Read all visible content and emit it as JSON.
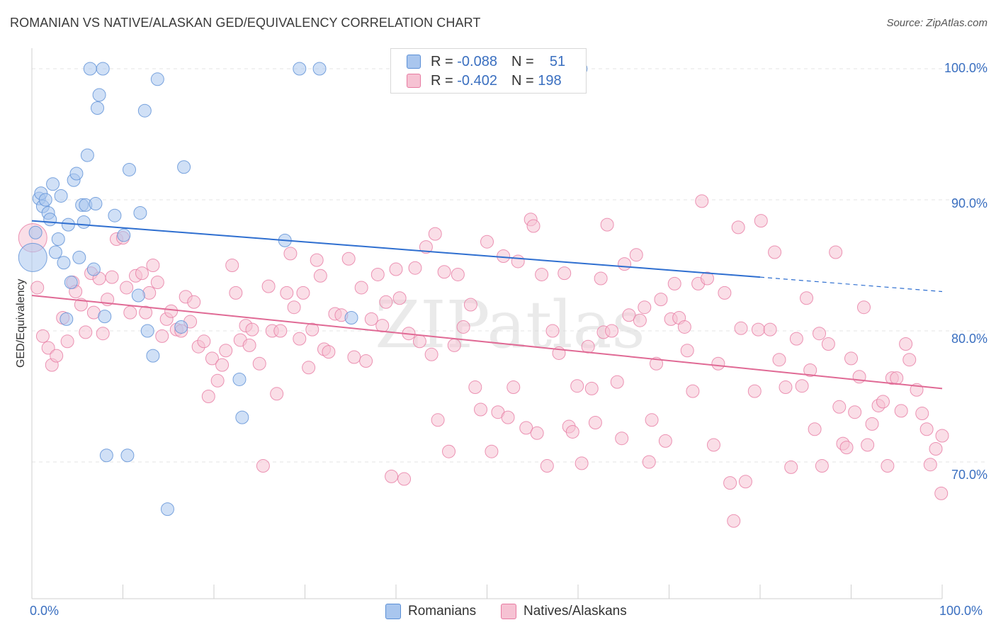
{
  "title": "ROMANIAN VS NATIVE/ALASKAN GED/EQUIVALENCY CORRELATION CHART",
  "source": "Source: ZipAtlas.com",
  "watermark": "ZIPatlas",
  "legend_stats": [
    {
      "r_label": "R =",
      "r_value": "-0.088",
      "n_label": "N =",
      "n_value": "51"
    },
    {
      "r_label": "R =",
      "r_value": "-0.402",
      "n_label": "N =",
      "n_value": "198"
    }
  ],
  "chart_data": {
    "type": "scatter",
    "title": "ROMANIAN VS NATIVE/ALASKAN GED/EQUIVALENCY CORRELATION CHART",
    "xlabel": "",
    "ylabel": "GED/Equivalency",
    "xlim": [
      0,
      100
    ],
    "ylim": [
      59,
      101
    ],
    "x_tick_labels": [
      "0.0%",
      "100.0%"
    ],
    "y_ticks": [
      70,
      80,
      90,
      100
    ],
    "y_tick_labels": [
      "70.0%",
      "80.0%",
      "90.0%",
      "100.0%"
    ],
    "grid": true,
    "legend_position": "bottom-center",
    "series": [
      {
        "name": "Romanians",
        "color": "#5b8fd6",
        "fill": "#a9c6ee",
        "r": -0.088,
        "n": 51,
        "trend": {
          "x0": 0,
          "y0": 88.4,
          "x1": 80,
          "y1": 84.1,
          "dash_x1": 100,
          "dash_y1": 83.0
        },
        "points": [
          [
            0.1,
            85.6
          ],
          [
            0.4,
            87.5
          ],
          [
            0.8,
            90.1
          ],
          [
            1.0,
            90.5
          ],
          [
            1.2,
            89.5
          ],
          [
            1.5,
            90.0
          ],
          [
            1.8,
            89.0
          ],
          [
            2.0,
            88.5
          ],
          [
            2.3,
            91.2
          ],
          [
            2.6,
            86.0
          ],
          [
            2.9,
            87.0
          ],
          [
            3.2,
            90.3
          ],
          [
            3.5,
            85.2
          ],
          [
            3.8,
            80.9
          ],
          [
            4.0,
            88.1
          ],
          [
            4.3,
            83.7
          ],
          [
            4.6,
            91.5
          ],
          [
            4.9,
            92.0
          ],
          [
            5.2,
            85.6
          ],
          [
            5.5,
            89.6
          ],
          [
            5.7,
            88.3
          ],
          [
            5.9,
            89.6
          ],
          [
            6.1,
            93.4
          ],
          [
            6.4,
            100.0
          ],
          [
            6.8,
            84.7
          ],
          [
            7.0,
            89.7
          ],
          [
            7.2,
            97.0
          ],
          [
            7.4,
            98.0
          ],
          [
            7.8,
            100.0
          ],
          [
            8.0,
            81.1
          ],
          [
            8.2,
            70.5
          ],
          [
            9.1,
            88.8
          ],
          [
            10.1,
            87.3
          ],
          [
            10.5,
            70.5
          ],
          [
            10.7,
            92.3
          ],
          [
            11.7,
            82.7
          ],
          [
            11.9,
            89.0
          ],
          [
            12.4,
            96.8
          ],
          [
            12.7,
            80.0
          ],
          [
            13.3,
            78.1
          ],
          [
            13.8,
            99.2
          ],
          [
            14.9,
            66.4
          ],
          [
            16.4,
            80.3
          ],
          [
            16.7,
            92.5
          ],
          [
            22.8,
            76.3
          ],
          [
            23.1,
            73.4
          ],
          [
            27.8,
            86.9
          ],
          [
            29.4,
            100.0
          ],
          [
            31.6,
            100.0
          ],
          [
            35.1,
            81.0
          ],
          [
            60.3,
            100.0
          ]
        ]
      },
      {
        "name": "Natives/Alaskans",
        "color": "#e77ba2",
        "fill": "#f6c2d3",
        "r": -0.402,
        "n": 198,
        "trend": {
          "x0": 0,
          "y0": 82.7,
          "x1": 100,
          "y1": 75.6
        },
        "points": [
          [
            0.1,
            87.1
          ],
          [
            0.6,
            83.3
          ],
          [
            1.2,
            79.6
          ],
          [
            1.8,
            78.7
          ],
          [
            2.2,
            77.4
          ],
          [
            2.7,
            78.1
          ],
          [
            3.4,
            81.0
          ],
          [
            3.9,
            79.2
          ],
          [
            4.5,
            83.7
          ],
          [
            4.8,
            83.0
          ],
          [
            5.4,
            82.0
          ],
          [
            5.9,
            79.9
          ],
          [
            6.5,
            84.4
          ],
          [
            6.8,
            81.4
          ],
          [
            7.4,
            84.0
          ],
          [
            7.8,
            79.8
          ],
          [
            8.3,
            82.4
          ],
          [
            8.8,
            84.1
          ],
          [
            9.3,
            87.0
          ],
          [
            10.0,
            87.1
          ],
          [
            10.4,
            83.3
          ],
          [
            10.8,
            81.4
          ],
          [
            11.4,
            84.2
          ],
          [
            12.1,
            84.4
          ],
          [
            12.5,
            81.4
          ],
          [
            12.9,
            82.9
          ],
          [
            13.3,
            85.0
          ],
          [
            13.8,
            83.7
          ],
          [
            14.3,
            79.6
          ],
          [
            14.8,
            80.9
          ],
          [
            15.3,
            81.5
          ],
          [
            15.9,
            80.1
          ],
          [
            16.4,
            80.0
          ],
          [
            16.9,
            82.6
          ],
          [
            17.4,
            80.7
          ],
          [
            17.8,
            82.2
          ],
          [
            18.3,
            78.8
          ],
          [
            18.9,
            79.2
          ],
          [
            19.4,
            75.0
          ],
          [
            19.8,
            77.9
          ],
          [
            20.4,
            76.2
          ],
          [
            20.9,
            77.4
          ],
          [
            21.3,
            78.5
          ],
          [
            22.0,
            85.0
          ],
          [
            22.4,
            82.9
          ],
          [
            22.9,
            79.3
          ],
          [
            23.5,
            80.4
          ],
          [
            23.9,
            78.9
          ],
          [
            24.2,
            80.1
          ],
          [
            25.0,
            77.5
          ],
          [
            25.4,
            69.7
          ],
          [
            26.0,
            83.4
          ],
          [
            26.4,
            80.0
          ],
          [
            26.9,
            75.2
          ],
          [
            27.3,
            80.0
          ],
          [
            28.0,
            82.9
          ],
          [
            28.4,
            85.9
          ],
          [
            28.8,
            81.8
          ],
          [
            29.4,
            79.4
          ],
          [
            29.8,
            82.9
          ],
          [
            30.4,
            77.2
          ],
          [
            30.8,
            80.1
          ],
          [
            31.3,
            85.4
          ],
          [
            31.7,
            84.2
          ],
          [
            32.1,
            78.6
          ],
          [
            32.6,
            78.4
          ],
          [
            33.3,
            81.3
          ],
          [
            34.0,
            81.2
          ],
          [
            34.8,
            85.5
          ],
          [
            35.4,
            78.0
          ],
          [
            36.2,
            83.3
          ],
          [
            36.7,
            77.7
          ],
          [
            37.3,
            80.9
          ],
          [
            38.0,
            84.3
          ],
          [
            38.5,
            80.4
          ],
          [
            38.9,
            82.2
          ],
          [
            39.5,
            68.9
          ],
          [
            40.0,
            84.7
          ],
          [
            40.4,
            82.5
          ],
          [
            40.9,
            68.7
          ],
          [
            41.4,
            79.8
          ],
          [
            42.1,
            84.8
          ],
          [
            42.6,
            79.2
          ],
          [
            43.3,
            86.4
          ],
          [
            43.9,
            78.2
          ],
          [
            44.3,
            87.4
          ],
          [
            44.6,
            73.2
          ],
          [
            45.3,
            84.5
          ],
          [
            45.8,
            70.8
          ],
          [
            46.4,
            78.9
          ],
          [
            46.8,
            84.3
          ],
          [
            47.4,
            80.3
          ],
          [
            48.2,
            82.0
          ],
          [
            48.7,
            75.7
          ],
          [
            49.3,
            74.0
          ],
          [
            50.0,
            86.8
          ],
          [
            50.5,
            70.8
          ],
          [
            51.2,
            73.8
          ],
          [
            51.8,
            85.7
          ],
          [
            52.3,
            73.4
          ],
          [
            52.9,
            75.7
          ],
          [
            53.4,
            85.3
          ],
          [
            54.3,
            72.6
          ],
          [
            54.8,
            88.5
          ],
          [
            55.1,
            88.0
          ],
          [
            55.5,
            72.2
          ],
          [
            56.0,
            84.3
          ],
          [
            56.6,
            69.7
          ],
          [
            57.2,
            80.0
          ],
          [
            57.9,
            78.3
          ],
          [
            58.5,
            84.4
          ],
          [
            59.0,
            72.7
          ],
          [
            59.4,
            72.3
          ],
          [
            59.9,
            75.8
          ],
          [
            60.4,
            69.9
          ],
          [
            61.1,
            78.8
          ],
          [
            61.5,
            75.6
          ],
          [
            61.9,
            73.0
          ],
          [
            62.5,
            84.0
          ],
          [
            62.8,
            79.9
          ],
          [
            63.2,
            88.1
          ],
          [
            63.7,
            80.0
          ],
          [
            64.3,
            76.1
          ],
          [
            64.8,
            71.8
          ],
          [
            65.1,
            85.1
          ],
          [
            65.6,
            81.2
          ],
          [
            66.4,
            85.8
          ],
          [
            66.8,
            80.8
          ],
          [
            67.3,
            81.8
          ],
          [
            67.8,
            70.0
          ],
          [
            68.1,
            73.2
          ],
          [
            68.6,
            77.5
          ],
          [
            69.1,
            82.4
          ],
          [
            69.6,
            71.6
          ],
          [
            70.2,
            80.9
          ],
          [
            70.6,
            83.6
          ],
          [
            71.1,
            81.0
          ],
          [
            71.7,
            80.3
          ],
          [
            72.0,
            78.5
          ],
          [
            72.6,
            75.4
          ],
          [
            73.2,
            83.6
          ],
          [
            73.6,
            89.9
          ],
          [
            74.2,
            84.0
          ],
          [
            74.9,
            71.3
          ],
          [
            75.4,
            77.5
          ],
          [
            76.1,
            82.9
          ],
          [
            76.7,
            68.4
          ],
          [
            77.1,
            65.5
          ],
          [
            77.6,
            87.9
          ],
          [
            77.9,
            80.2
          ],
          [
            78.4,
            68.5
          ],
          [
            79.4,
            75.4
          ],
          [
            79.8,
            80.1
          ],
          [
            80.1,
            88.4
          ],
          [
            81.1,
            80.1
          ],
          [
            81.6,
            86.0
          ],
          [
            82.1,
            77.8
          ],
          [
            82.8,
            75.7
          ],
          [
            83.4,
            69.6
          ],
          [
            84.0,
            79.4
          ],
          [
            84.6,
            75.8
          ],
          [
            85.1,
            82.5
          ],
          [
            85.5,
            77.0
          ],
          [
            86.0,
            72.5
          ],
          [
            86.5,
            79.8
          ],
          [
            86.8,
            69.7
          ],
          [
            87.5,
            79.0
          ],
          [
            88.3,
            86.0
          ],
          [
            88.7,
            74.2
          ],
          [
            89.1,
            71.4
          ],
          [
            89.5,
            71.1
          ],
          [
            90.0,
            77.9
          ],
          [
            90.4,
            73.8
          ],
          [
            90.9,
            76.5
          ],
          [
            91.4,
            81.8
          ],
          [
            91.8,
            71.3
          ],
          [
            92.3,
            72.9
          ],
          [
            93.0,
            74.3
          ],
          [
            93.5,
            74.6
          ],
          [
            94.0,
            69.7
          ],
          [
            94.5,
            76.4
          ],
          [
            95.0,
            76.4
          ],
          [
            95.5,
            73.9
          ],
          [
            96.0,
            79.0
          ],
          [
            96.4,
            77.8
          ],
          [
            97.2,
            75.5
          ],
          [
            97.8,
            73.7
          ],
          [
            98.3,
            72.5
          ],
          [
            98.7,
            69.8
          ],
          [
            99.3,
            71.0
          ],
          [
            99.9,
            67.6
          ],
          [
            100.0,
            72.0
          ]
        ]
      }
    ]
  },
  "bottom_legend": [
    "Romanians",
    "Natives/Alaskans"
  ]
}
